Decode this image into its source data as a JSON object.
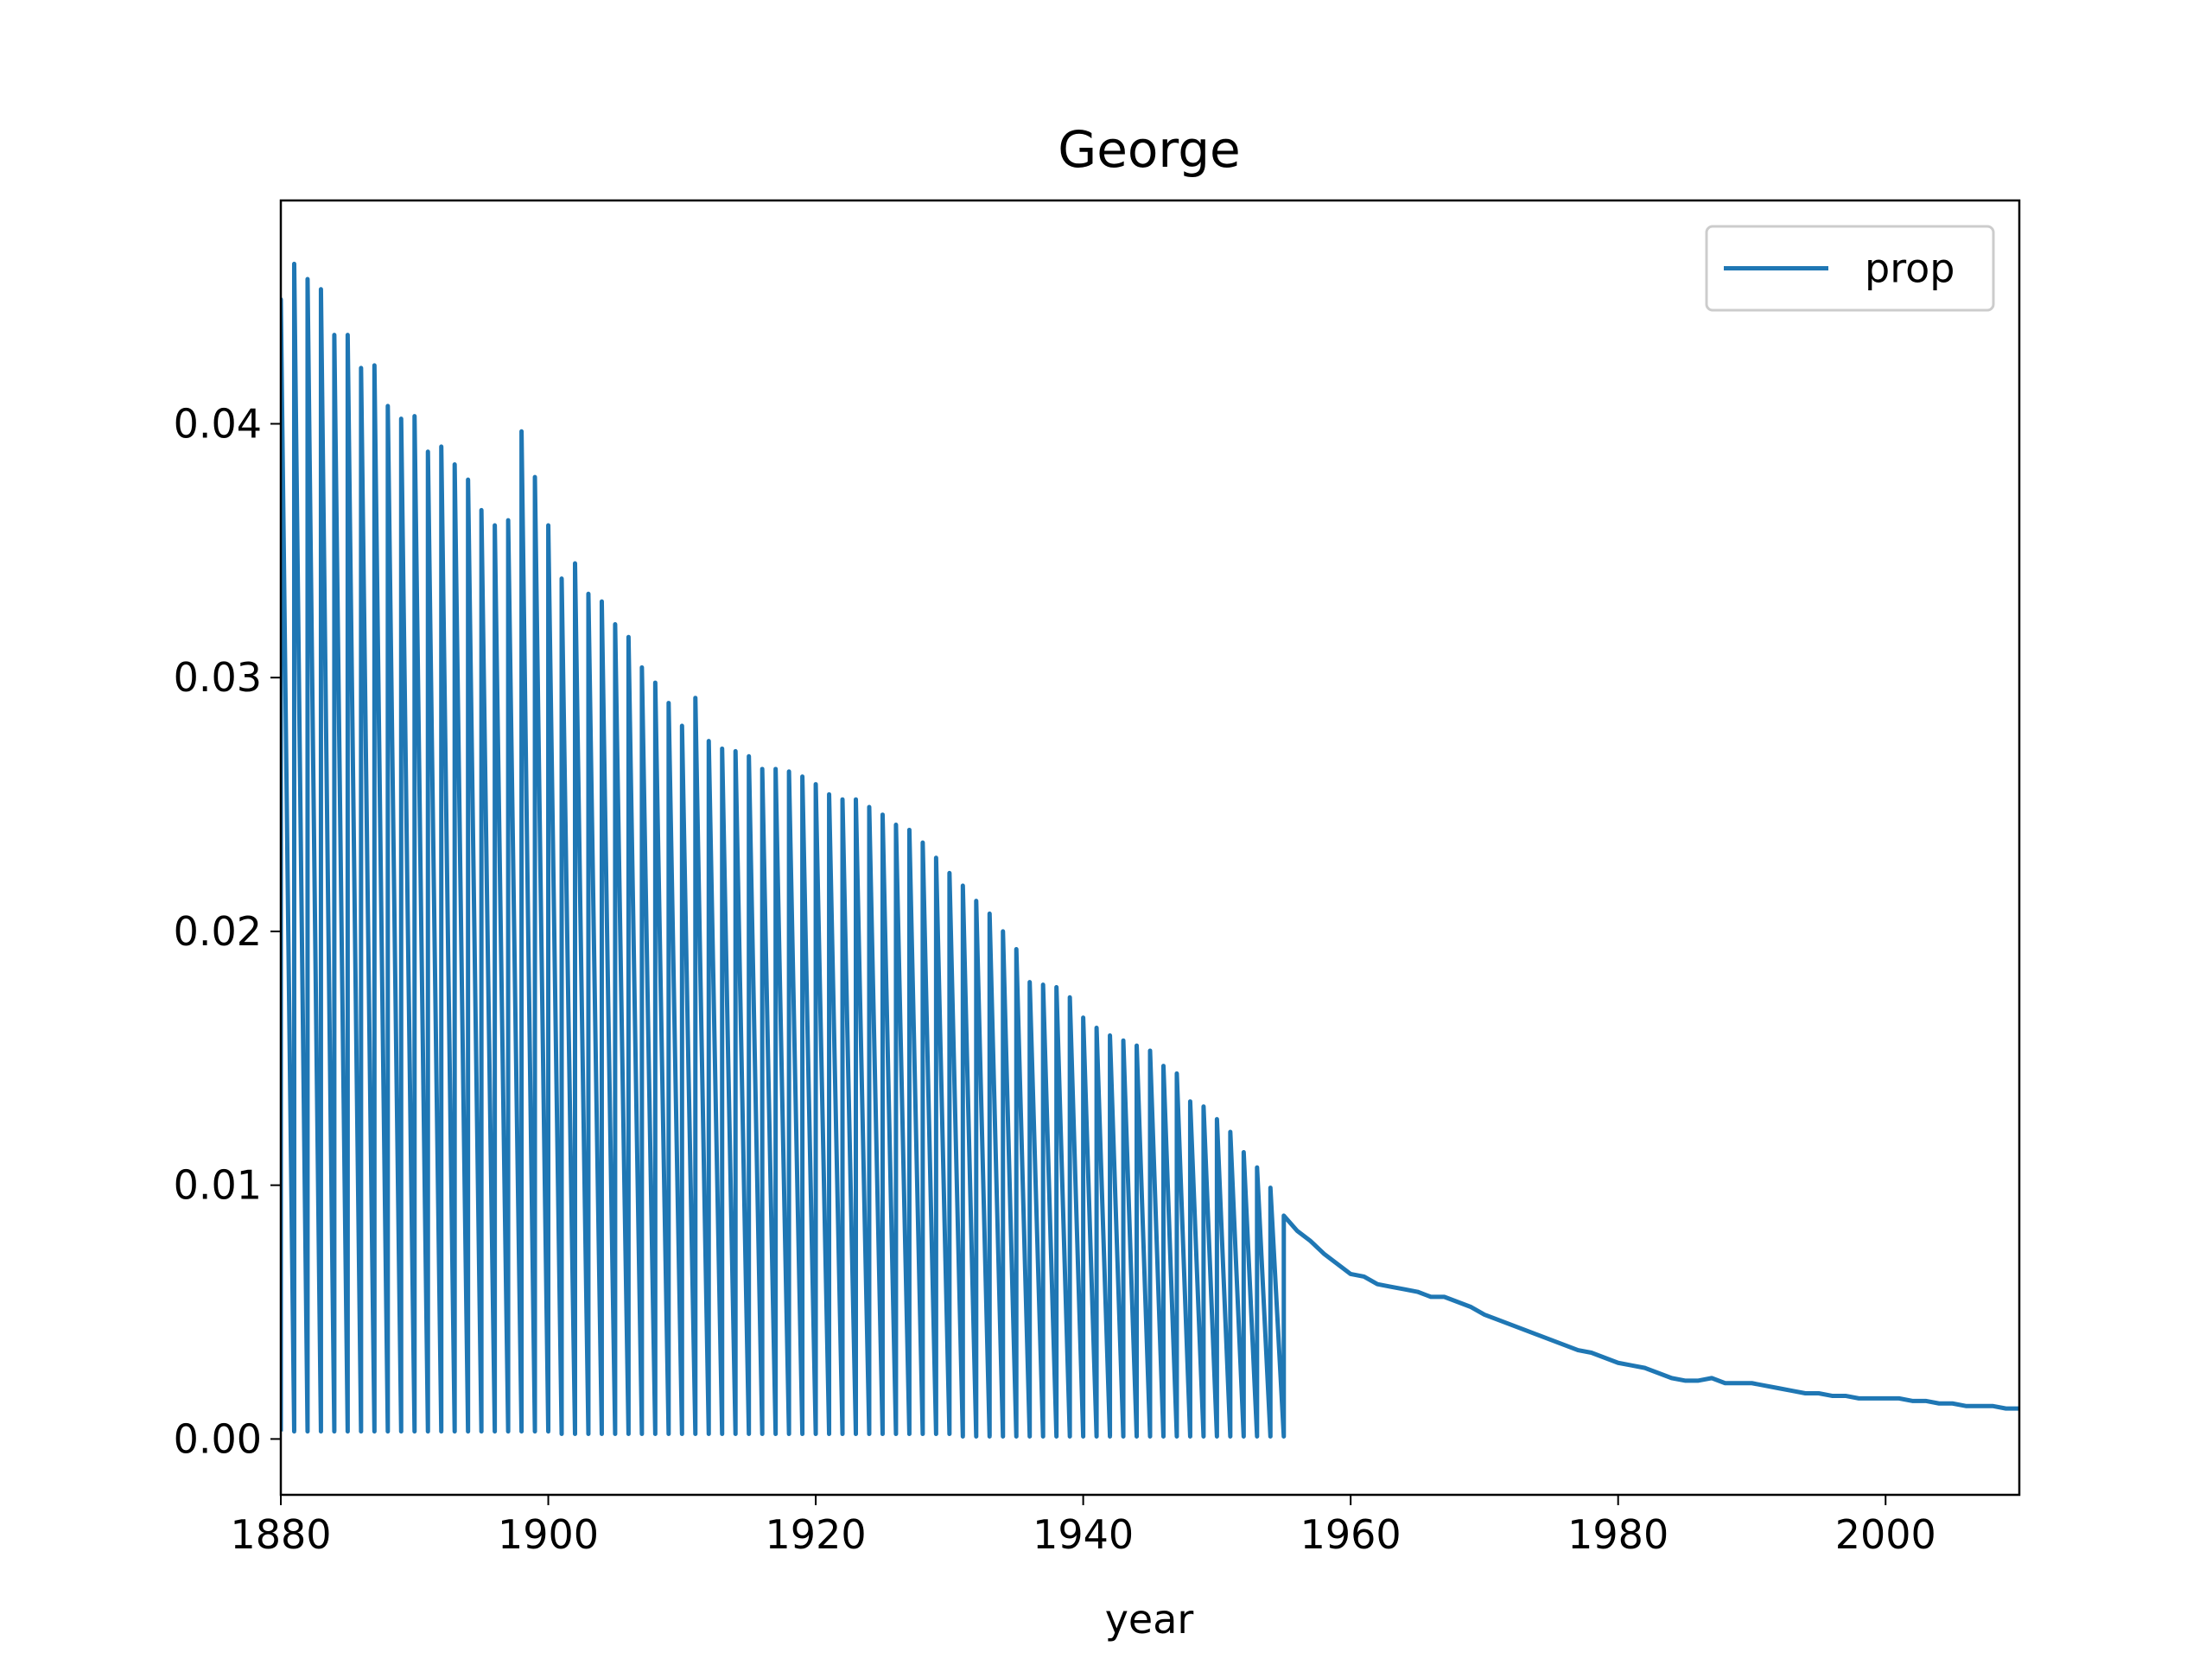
{
  "chart_data": {
    "type": "line",
    "title": "George",
    "xlabel": "year",
    "x": [
      1880,
      1880,
      1881,
      1881,
      1882,
      1882,
      1883,
      1883,
      1884,
      1884,
      1885,
      1885,
      1886,
      1886,
      1887,
      1887,
      1888,
      1888,
      1889,
      1889,
      1890,
      1890,
      1891,
      1891,
      1892,
      1892,
      1893,
      1893,
      1894,
      1894,
      1895,
      1895,
      1896,
      1896,
      1897,
      1897,
      1898,
      1898,
      1899,
      1899,
      1900,
      1900,
      1901,
      1901,
      1902,
      1902,
      1903,
      1903,
      1904,
      1904,
      1905,
      1905,
      1906,
      1906,
      1907,
      1907,
      1908,
      1908,
      1909,
      1909,
      1910,
      1910,
      1911,
      1911,
      1912,
      1912,
      1913,
      1913,
      1914,
      1914,
      1915,
      1915,
      1916,
      1916,
      1917,
      1917,
      1918,
      1918,
      1919,
      1919,
      1920,
      1920,
      1921,
      1921,
      1922,
      1922,
      1923,
      1923,
      1924,
      1924,
      1925,
      1925,
      1926,
      1926,
      1927,
      1927,
      1928,
      1928,
      1929,
      1929,
      1930,
      1930,
      1931,
      1931,
      1932,
      1932,
      1933,
      1933,
      1934,
      1934,
      1935,
      1935,
      1936,
      1936,
      1937,
      1937,
      1938,
      1938,
      1939,
      1939,
      1940,
      1940,
      1941,
      1941,
      1942,
      1942,
      1943,
      1943,
      1944,
      1944,
      1945,
      1945,
      1946,
      1946,
      1947,
      1947,
      1948,
      1948,
      1949,
      1949,
      1950,
      1950,
      1951,
      1951,
      1952,
      1952,
      1953,
      1953,
      1954,
      1954,
      1955,
      1955,
      1956,
      1957,
      1958,
      1959,
      1960,
      1961,
      1962,
      1963,
      1964,
      1965,
      1966,
      1967,
      1968,
      1969,
      1970,
      1971,
      1972,
      1973,
      1974,
      1975,
      1976,
      1977,
      1978,
      1979,
      1980,
      1981,
      1982,
      1983,
      1984,
      1985,
      1986,
      1987,
      1988,
      1989,
      1990,
      1991,
      1992,
      1993,
      1994,
      1995,
      1996,
      1997,
      1998,
      1999,
      2000,
      2001,
      2002,
      2003,
      2004,
      2005,
      2006,
      2007,
      2008,
      2009,
      2010
    ],
    "series": [
      {
        "name": "prop",
        "color": "#1f77b4",
        "values": [
          0.0003,
          0.0449,
          0.0003,
          0.0463,
          0.0003,
          0.0457,
          0.0003,
          0.0453,
          0.0003,
          0.0435,
          0.0003,
          0.0435,
          0.0003,
          0.0422,
          0.0003,
          0.0423,
          0.0003,
          0.0407,
          0.0003,
          0.0402,
          0.0003,
          0.0403,
          0.0003,
          0.0389,
          0.0003,
          0.0391,
          0.0003,
          0.0384,
          0.0003,
          0.0378,
          0.0003,
          0.0366,
          0.0003,
          0.036,
          0.0003,
          0.0362,
          0.0003,
          0.0397,
          0.0003,
          0.0379,
          0.0003,
          0.036,
          0.0002,
          0.0339,
          0.0002,
          0.0345,
          0.0002,
          0.0333,
          0.0002,
          0.033,
          0.0002,
          0.0321,
          0.0002,
          0.0316,
          0.0002,
          0.0304,
          0.0002,
          0.0298,
          0.0002,
          0.029,
          0.0002,
          0.0281,
          0.0002,
          0.0292,
          0.0002,
          0.0275,
          0.0002,
          0.0272,
          0.0002,
          0.0271,
          0.0002,
          0.0269,
          0.0002,
          0.0264,
          0.0002,
          0.0264,
          0.0002,
          0.0263,
          0.0002,
          0.0261,
          0.0002,
          0.0258,
          0.0002,
          0.0254,
          0.0002,
          0.0252,
          0.0002,
          0.0252,
          0.0002,
          0.0249,
          0.0002,
          0.0246,
          0.0002,
          0.0242,
          0.0002,
          0.024,
          0.0002,
          0.0235,
          0.0002,
          0.0229,
          0.0002,
          0.0223,
          0.0001,
          0.0218,
          0.0001,
          0.0212,
          0.0001,
          0.0207,
          0.0001,
          0.02,
          0.0001,
          0.0193,
          0.0001,
          0.018,
          0.0001,
          0.0179,
          0.0001,
          0.0178,
          0.0001,
          0.0174,
          0.0001,
          0.0166,
          0.0001,
          0.0162,
          0.0001,
          0.0159,
          0.0001,
          0.0157,
          0.0001,
          0.0155,
          0.0001,
          0.0153,
          0.0001,
          0.0147,
          0.0001,
          0.0144,
          0.0001,
          0.0133,
          0.0001,
          0.0131,
          0.0001,
          0.0126,
          0.0001,
          0.0121,
          0.0001,
          0.0113,
          0.0001,
          0.0107,
          0.0001,
          0.0099,
          0.0001,
          0.0088,
          0.0082,
          0.0078,
          0.0073,
          0.0069,
          0.0065,
          0.0064,
          0.0061,
          0.006,
          0.0059,
          0.0058,
          0.0056,
          0.0056,
          0.0054,
          0.0052,
          0.0049,
          0.0047,
          0.0045,
          0.0043,
          0.0041,
          0.0039,
          0.0037,
          0.0035,
          0.0034,
          0.0032,
          0.003,
          0.0029,
          0.0028,
          0.0026,
          0.0024,
          0.0023,
          0.0023,
          0.0024,
          0.0022,
          0.0022,
          0.0022,
          0.0021,
          0.002,
          0.0019,
          0.0018,
          0.0018,
          0.0017,
          0.0017,
          0.0016,
          0.0016,
          0.0016,
          0.0016,
          0.0015,
          0.0015,
          0.0014,
          0.0014,
          0.0013,
          0.0013,
          0.0013,
          0.0012,
          0.0012
        ]
      }
    ],
    "xlim": [
      1880,
      2010
    ],
    "xticks": [
      1880,
      1900,
      1920,
      1940,
      1960,
      1980,
      2000
    ],
    "ylim": [
      -0.0022,
      0.0488
    ],
    "yticks": [
      {
        "value": 0,
        "label": "0.00"
      },
      0.01,
      0.02,
      0.03,
      0.04
    ],
    "grid": false,
    "legend": "upper right"
  }
}
